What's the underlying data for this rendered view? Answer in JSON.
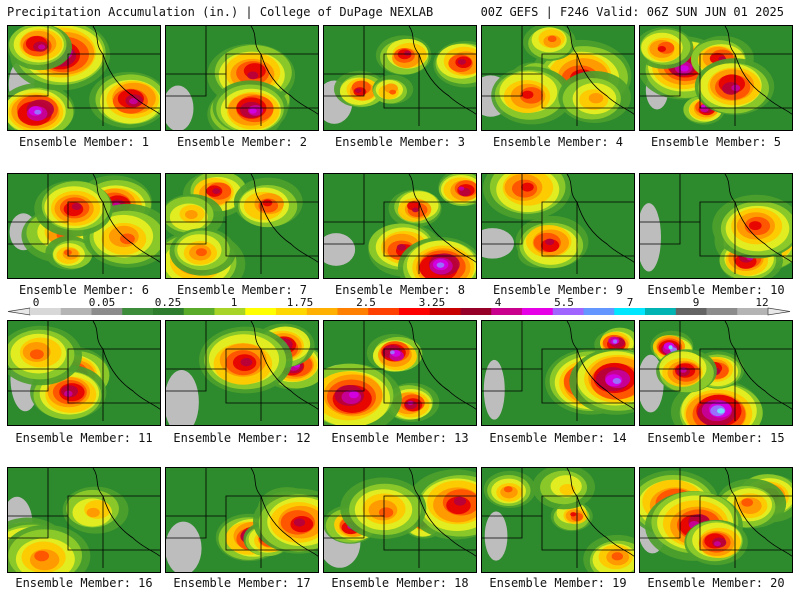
{
  "header": {
    "left_title": "Precipitation Accumulation (in.) | College of DuPage NEXLAB",
    "right_title": "00Z GEFS | F246 Valid: 06Z SUN JUN 01 2025"
  },
  "members": [
    {
      "label": "Ensemble Member: 1",
      "intensity": 0.85
    },
    {
      "label": "Ensemble Member: 2",
      "intensity": 0.9
    },
    {
      "label": "Ensemble Member: 3",
      "intensity": 0.55
    },
    {
      "label": "Ensemble Member: 4",
      "intensity": 0.6
    },
    {
      "label": "Ensemble Member: 5",
      "intensity": 0.8
    },
    {
      "label": "Ensemble Member: 6",
      "intensity": 0.65
    },
    {
      "label": "Ensemble Member: 7",
      "intensity": 0.6
    },
    {
      "label": "Ensemble Member: 8",
      "intensity": 0.85
    },
    {
      "label": "Ensemble Member: 9",
      "intensity": 0.75
    },
    {
      "label": "Ensemble Member: 10",
      "intensity": 0.7
    },
    {
      "label": "Ensemble Member: 11",
      "intensity": 0.7
    },
    {
      "label": "Ensemble Member: 12",
      "intensity": 0.75
    },
    {
      "label": "Ensemble Member: 13",
      "intensity": 0.9
    },
    {
      "label": "Ensemble Member: 14",
      "intensity": 0.85
    },
    {
      "label": "Ensemble Member: 15",
      "intensity": 1.0
    },
    {
      "label": "Ensemble Member: 16",
      "intensity": 0.6
    },
    {
      "label": "Ensemble Member: 17",
      "intensity": 0.75
    },
    {
      "label": "Ensemble Member: 18",
      "intensity": 0.7
    },
    {
      "label": "Ensemble Member: 19",
      "intensity": 0.45
    },
    {
      "label": "Ensemble Member: 20",
      "intensity": 0.7
    }
  ],
  "colorbar": {
    "tick_labels": [
      "0",
      "0.05",
      "0.25",
      "1",
      "1.75",
      "2.5",
      "3.25",
      "4",
      "5.5",
      "7",
      "9",
      "12"
    ],
    "colors": [
      "#d8d8d8",
      "#b4b4b4",
      "#8c8c8c",
      "#3c8c3c",
      "#2e7d2e",
      "#5aab2a",
      "#a8d428",
      "#ffff00",
      "#ffd700",
      "#ffb000",
      "#ff8000",
      "#ff4000",
      "#ff0000",
      "#c80000",
      "#960028",
      "#c8008c",
      "#e600e6",
      "#a064ff",
      "#6496ff",
      "#00e6ff",
      "#00b4b4",
      "#646464",
      "#8c8c8c",
      "#b4b4b4"
    ]
  },
  "precip_colors": [
    "#bdbdbd",
    "#2d8a2d",
    "#4da02d",
    "#8fcc2a",
    "#e8f020",
    "#ffc800",
    "#ff9600",
    "#ff5000",
    "#e60000",
    "#b4003c",
    "#c8009c",
    "#d200e6",
    "#9678ff",
    "#6ee6ff"
  ]
}
